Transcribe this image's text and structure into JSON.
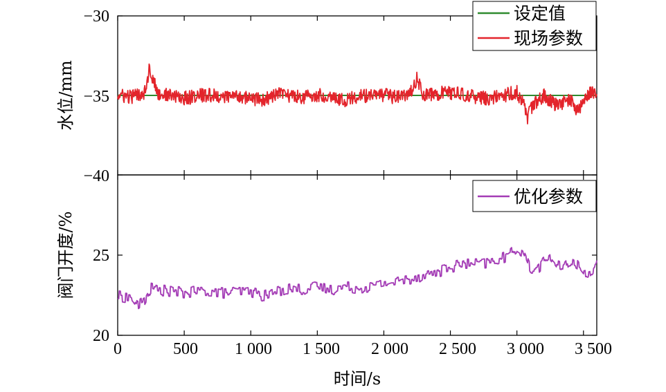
{
  "colors": {
    "setpoint": "#2e8b2e",
    "field": "#e3242b",
    "optimized": "#a33bb5"
  },
  "chart_data": [
    {
      "type": "line",
      "ylabel": "水位/mm",
      "ylim": [
        -40,
        -30
      ],
      "yticks": [
        "−30",
        "−35",
        "−40"
      ],
      "ytick_values": [
        -30,
        -35,
        -40
      ],
      "xlim": [
        0,
        3600
      ],
      "grid": false,
      "legend": "top-right",
      "series": [
        {
          "name": "设定值",
          "color_key": "setpoint",
          "x": [
            0,
            3600
          ],
          "values": [
            -35,
            -35
          ]
        },
        {
          "name": "现场参数",
          "color_key": "field",
          "x": [
            0,
            100,
            200,
            240,
            300,
            400,
            500,
            600,
            700,
            800,
            900,
            1000,
            1100,
            1200,
            1300,
            1400,
            1500,
            1600,
            1700,
            1800,
            1900,
            2000,
            2100,
            2200,
            2250,
            2300,
            2400,
            2500,
            2600,
            2700,
            2800,
            2900,
            3000,
            3050,
            3080,
            3100,
            3200,
            3300,
            3400,
            3450,
            3500,
            3550,
            3600
          ],
          "values": [
            -35.0,
            -35.1,
            -34.8,
            -33.3,
            -34.9,
            -35.0,
            -35.2,
            -35.0,
            -35.0,
            -35.1,
            -35.0,
            -35.2,
            -35.3,
            -34.9,
            -35.0,
            -35.1,
            -35.0,
            -35.0,
            -35.3,
            -35.1,
            -35.0,
            -35.0,
            -35.1,
            -34.9,
            -33.9,
            -35.0,
            -34.9,
            -34.8,
            -35.0,
            -35.1,
            -35.2,
            -35.0,
            -34.8,
            -35.5,
            -36.6,
            -35.8,
            -35.0,
            -35.6,
            -35.2,
            -36.1,
            -35.3,
            -34.8,
            -35.0
          ],
          "noise": 0.45
        }
      ]
    },
    {
      "type": "line",
      "ylabel": "阀门开度/%",
      "xlabel": "时间/s",
      "ylim": [
        20,
        30
      ],
      "yticks": [
        "25",
        "20"
      ],
      "ytick_values": [
        25,
        20
      ],
      "xlim": [
        0,
        3600
      ],
      "xtick_values": [
        0,
        500,
        1000,
        1500,
        2000,
        2500,
        3000,
        3500
      ],
      "xticks": [
        "0",
        "500",
        "1 000",
        "1 500",
        "2 000",
        "2 500",
        "3 000",
        "3 500"
      ],
      "grid": false,
      "legend": "top-right",
      "series": [
        {
          "name": "优化参数",
          "color_key": "optimized",
          "x": [
            0,
            100,
            150,
            200,
            250,
            300,
            400,
            500,
            600,
            700,
            800,
            900,
            1000,
            1100,
            1200,
            1300,
            1400,
            1500,
            1600,
            1700,
            1800,
            1900,
            2000,
            2100,
            2200,
            2300,
            2400,
            2500,
            2600,
            2700,
            2800,
            2900,
            2950,
            3000,
            3050,
            3100,
            3150,
            3200,
            3250,
            3300,
            3350,
            3400,
            3450,
            3500,
            3550,
            3600
          ],
          "values": [
            22.3,
            22.2,
            21.7,
            22.0,
            22.8,
            22.7,
            22.6,
            22.5,
            22.6,
            22.6,
            22.5,
            22.6,
            22.6,
            22.3,
            22.6,
            22.8,
            22.7,
            22.9,
            22.7,
            22.9,
            22.8,
            22.9,
            23.1,
            23.2,
            23.4,
            23.6,
            23.8,
            24.1,
            24.3,
            24.3,
            24.4,
            24.7,
            24.9,
            25.3,
            25.0,
            24.0,
            24.0,
            24.4,
            24.8,
            24.2,
            24.0,
            24.5,
            24.3,
            23.7,
            23.8,
            24.3
          ],
          "noise": 0.35
        }
      ]
    }
  ]
}
